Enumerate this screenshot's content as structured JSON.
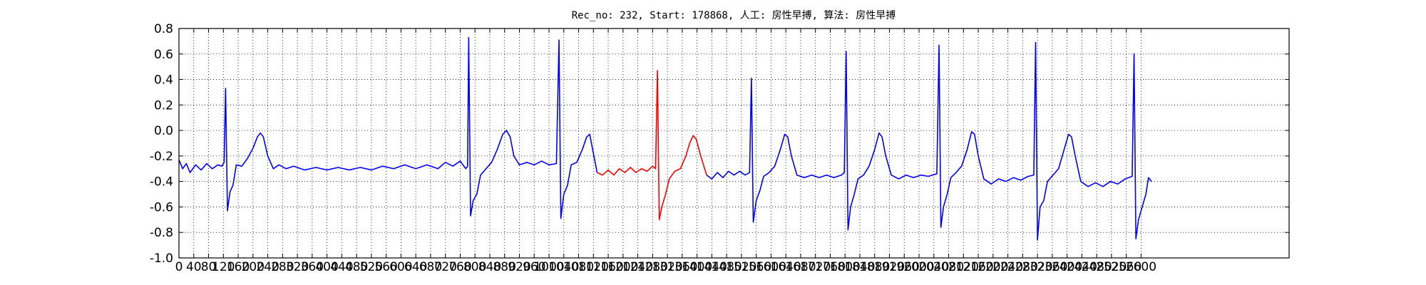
{
  "chart_data": {
    "type": "line",
    "title": "Rec_no: 232, Start: 178868, 人工: 房性早搏, 算法: 房性早搏",
    "xlim": [
      0,
      3000
    ],
    "xticks": [
      0,
      40,
      80,
      120,
      160,
      200,
      240,
      280,
      320,
      360,
      400,
      440,
      480,
      520,
      560,
      600,
      640,
      680,
      720,
      760,
      800,
      840,
      880,
      920,
      960,
      1000,
      1040,
      1080,
      1120,
      1160,
      1200,
      1240,
      1280,
      1320,
      1360,
      1400,
      1440,
      1480,
      1520,
      1560,
      1600,
      1640,
      1680,
      1720,
      1760,
      1800,
      1840,
      1880,
      1920,
      1960,
      2000,
      2040,
      2080,
      2120,
      2160,
      2200,
      2240,
      2280,
      2320,
      2360,
      2400,
      2440,
      2480,
      2520,
      2560,
      2600
    ],
    "ylim": [
      -1,
      0.8
    ],
    "yticks": [
      {
        "value": -1,
        "label": "-1.0"
      },
      -0.8,
      -0.6,
      -0.4,
      -0.2,
      {
        "value": 0,
        "label": "0.0"
      },
      0.2,
      0.4,
      0.6,
      0.8
    ],
    "grid": true,
    "series": [
      {
        "color": "#0000ff",
        "x": [
          0,
          10,
          20,
          30,
          45,
          60,
          75,
          90,
          105,
          116,
          122,
          126,
          131,
          138,
          146,
          155,
          170,
          185,
          200,
          212,
          220,
          228,
          240,
          255,
          270,
          290,
          310,
          340,
          370,
          400,
          430,
          460,
          490,
          520,
          550,
          580,
          610,
          640,
          670,
          700,
          720,
          740,
          760,
          775,
          780,
          783,
          788,
          795,
          805,
          815,
          830,
          845,
          860,
          875,
          885,
          895,
          905,
          920,
          940,
          960,
          980,
          1000,
          1020,
          1027,
          1032,
          1040,
          1050,
          1060,
          1075,
          1090,
          1102,
          1110,
          1118,
          1130
        ],
        "values": [
          -0.23,
          -0.3,
          -0.26,
          -0.33,
          -0.27,
          -0.31,
          -0.26,
          -0.3,
          -0.27,
          -0.28,
          -0.25,
          0.33,
          -0.63,
          -0.48,
          -0.43,
          -0.27,
          -0.28,
          -0.22,
          -0.14,
          -0.05,
          -0.02,
          -0.05,
          -0.2,
          -0.3,
          -0.27,
          -0.3,
          -0.28,
          -0.31,
          -0.29,
          -0.31,
          -0.29,
          -0.31,
          -0.29,
          -0.31,
          -0.28,
          -0.3,
          -0.27,
          -0.3,
          -0.27,
          -0.3,
          -0.25,
          -0.28,
          -0.24,
          -0.3,
          -0.28,
          0.73,
          -0.67,
          -0.55,
          -0.5,
          -0.35,
          -0.3,
          -0.25,
          -0.15,
          -0.03,
          0.0,
          -0.05,
          -0.2,
          -0.27,
          -0.25,
          -0.27,
          -0.24,
          -0.27,
          -0.26,
          0.71,
          -0.69,
          -0.5,
          -0.43,
          -0.27,
          -0.25,
          -0.15,
          -0.05,
          -0.03,
          -0.15,
          -0.33
        ]
      },
      {
        "color": "#ff0000",
        "x": [
          1130,
          1145,
          1160,
          1175,
          1190,
          1205,
          1220,
          1235,
          1250,
          1265,
          1280,
          1288,
          1293,
          1298,
          1305,
          1315,
          1325,
          1340,
          1355,
          1370,
          1380,
          1390,
          1398,
          1410,
          1426
        ],
        "values": [
          -0.33,
          -0.35,
          -0.31,
          -0.35,
          -0.3,
          -0.33,
          -0.29,
          -0.33,
          -0.3,
          -0.32,
          -0.28,
          -0.3,
          0.47,
          -0.7,
          -0.6,
          -0.5,
          -0.38,
          -0.32,
          -0.3,
          -0.2,
          -0.1,
          -0.04,
          -0.07,
          -0.2,
          -0.35
        ]
      },
      {
        "color": "#0000ff",
        "x": [
          1426,
          1440,
          1455,
          1470,
          1485,
          1500,
          1515,
          1530,
          1542,
          1547,
          1552,
          1560,
          1570,
          1580,
          1595,
          1610,
          1625,
          1637,
          1645,
          1655,
          1670,
          1690,
          1710,
          1730,
          1750,
          1770,
          1790,
          1798,
          1803,
          1808,
          1815,
          1825,
          1835,
          1850,
          1865,
          1880,
          1892,
          1900,
          1910,
          1925,
          1945,
          1965,
          1985,
          2005,
          2025,
          2048,
          2054,
          2059,
          2066,
          2076,
          2086,
          2100,
          2115,
          2130,
          2142,
          2150,
          2160,
          2175,
          2195,
          2215,
          2235,
          2255,
          2275,
          2295,
          2310,
          2315,
          2320,
          2327,
          2337,
          2347,
          2362,
          2377,
          2392,
          2404,
          2412,
          2422,
          2437,
          2457,
          2477,
          2497,
          2517,
          2537,
          2557,
          2576,
          2581,
          2586,
          2593,
          2603,
          2613,
          2620,
          2628
        ],
        "values": [
          -0.35,
          -0.38,
          -0.33,
          -0.37,
          -0.32,
          -0.35,
          -0.32,
          -0.35,
          -0.33,
          0.41,
          -0.72,
          -0.55,
          -0.47,
          -0.36,
          -0.33,
          -0.28,
          -0.15,
          -0.03,
          -0.05,
          -0.2,
          -0.35,
          -0.37,
          -0.35,
          -0.37,
          -0.35,
          -0.37,
          -0.35,
          -0.33,
          0.62,
          -0.78,
          -0.6,
          -0.5,
          -0.38,
          -0.35,
          -0.28,
          -0.15,
          -0.02,
          -0.05,
          -0.2,
          -0.35,
          -0.38,
          -0.35,
          -0.37,
          -0.35,
          -0.36,
          -0.34,
          0.67,
          -0.76,
          -0.6,
          -0.5,
          -0.37,
          -0.33,
          -0.28,
          -0.15,
          -0.01,
          -0.03,
          -0.2,
          -0.38,
          -0.42,
          -0.38,
          -0.4,
          -0.37,
          -0.39,
          -0.36,
          -0.35,
          0.69,
          -0.86,
          -0.6,
          -0.55,
          -0.4,
          -0.35,
          -0.3,
          -0.15,
          -0.03,
          -0.05,
          -0.2,
          -0.4,
          -0.44,
          -0.41,
          -0.44,
          -0.4,
          -0.42,
          -0.38,
          -0.36,
          0.6,
          -0.85,
          -0.7,
          -0.6,
          -0.5,
          -0.37,
          -0.4
        ]
      }
    ]
  }
}
